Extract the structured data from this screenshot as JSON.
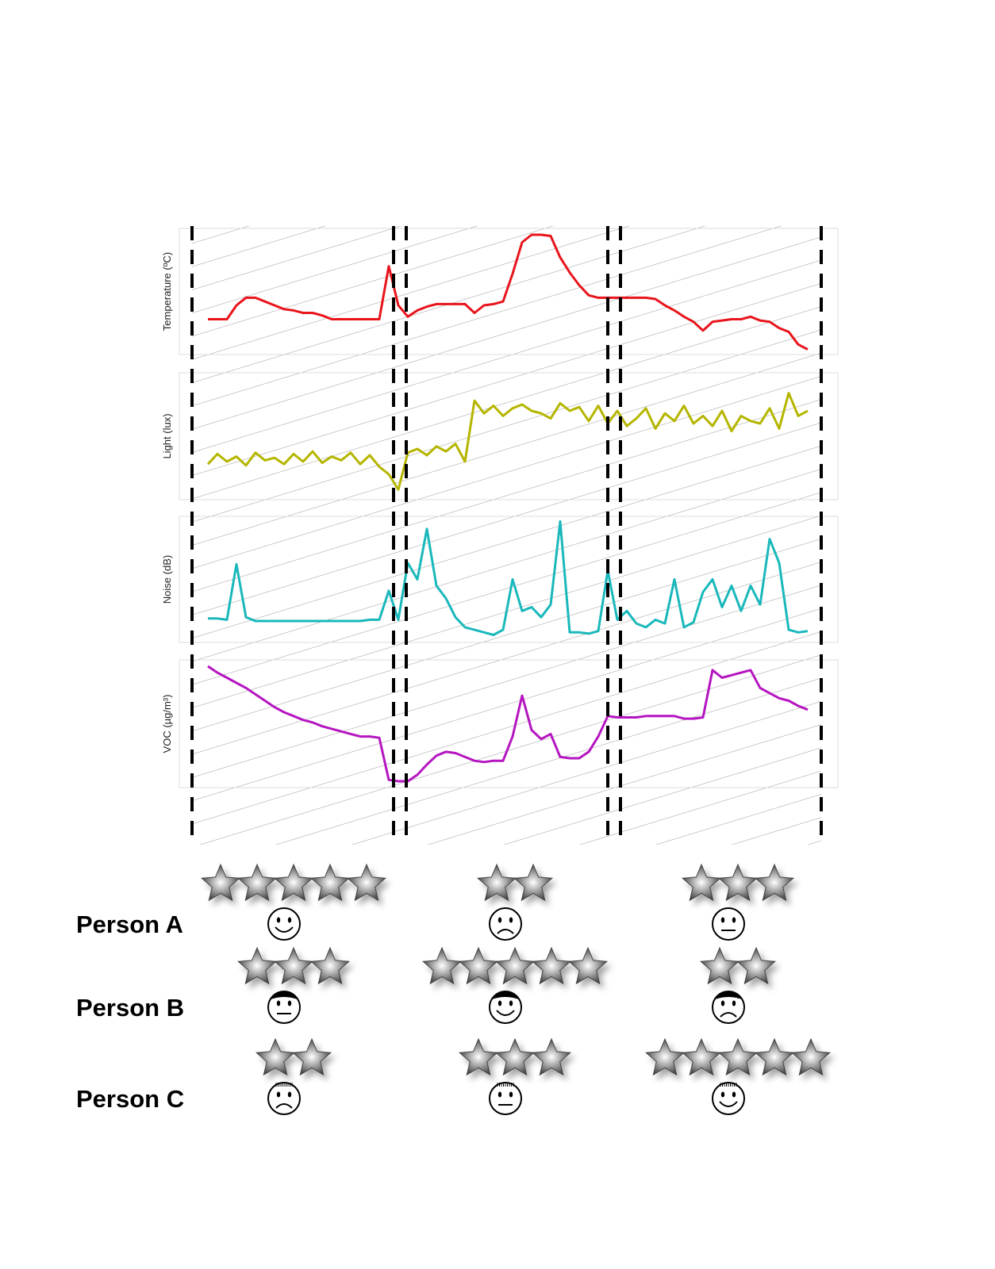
{
  "chart_data": [
    {
      "type": "line",
      "y_label": "Temperature (ºC)",
      "color": "#e8141b",
      "ylim": [
        0,
        100
      ],
      "values": [
        28,
        28,
        28,
        39,
        45,
        45,
        42,
        39,
        36,
        35,
        33,
        33,
        31,
        28,
        28,
        28,
        28,
        28,
        28,
        70,
        39,
        30,
        35,
        38,
        40,
        40,
        40,
        40,
        33,
        39,
        40,
        42,
        64,
        89,
        95,
        95,
        94,
        77,
        65,
        55,
        47,
        45,
        45,
        45,
        45,
        45,
        45,
        44,
        39,
        35,
        30,
        26,
        19,
        26,
        27,
        28,
        28,
        30,
        27,
        26,
        21,
        18,
        8,
        4
      ]
    },
    {
      "type": "line",
      "y_label": "Light (lux)",
      "color": "#b5b500",
      "ylim": [
        0,
        100
      ],
      "values": [
        28,
        36,
        30,
        34,
        27,
        37,
        31,
        33,
        28,
        36,
        30,
        38,
        29,
        34,
        31,
        37,
        28,
        35,
        26,
        20,
        8,
        37,
        40,
        35,
        42,
        38,
        44,
        30,
        78,
        68,
        74,
        66,
        72,
        75,
        70,
        68,
        64,
        76,
        70,
        73,
        62,
        74,
        60,
        70,
        58,
        64,
        72,
        56,
        68,
        62,
        74,
        60,
        66,
        58,
        70,
        54,
        66,
        62,
        60,
        72,
        56,
        84,
        66,
        70
      ]
    },
    {
      "type": "line",
      "y_label": "Noise (dB)",
      "color": "#1ab8bb",
      "ylim": [
        0,
        100
      ],
      "values": [
        19,
        19,
        18,
        62,
        20,
        17,
        17,
        17,
        17,
        17,
        17,
        17,
        17,
        17,
        17,
        17,
        17,
        18,
        18,
        41,
        18,
        63,
        50,
        90,
        45,
        35,
        20,
        12,
        10,
        8,
        6,
        10,
        50,
        25,
        28,
        20,
        30,
        96,
        8,
        8,
        7,
        9,
        57,
        18,
        25,
        15,
        12,
        18,
        15,
        50,
        12,
        16,
        40,
        50,
        28,
        45,
        25,
        45,
        30,
        82,
        63,
        10,
        8,
        9
      ]
    },
    {
      "type": "line",
      "y_label": "VOC (µg/m³)",
      "color": "#b515c0",
      "ylim": [
        0,
        100
      ],
      "values": [
        95,
        90,
        86,
        82,
        78,
        73,
        68,
        63,
        59,
        56,
        53,
        51,
        48,
        46,
        44,
        42,
        40,
        40,
        39,
        6,
        5,
        5,
        10,
        18,
        25,
        28,
        27,
        24,
        21,
        20,
        21,
        21,
        40,
        72,
        45,
        38,
        42,
        24,
        23,
        23,
        28,
        40,
        56,
        55,
        55,
        55,
        56,
        56,
        56,
        56,
        54,
        54,
        55,
        92,
        86,
        88,
        90,
        92,
        78,
        74,
        70,
        68,
        64,
        61
      ]
    }
  ],
  "ratings": {
    "people": [
      {
        "name": "Person A",
        "hair": "none",
        "ratings": [
          {
            "stars": 5,
            "mood": "happy"
          },
          {
            "stars": 2,
            "mood": "sad"
          },
          {
            "stars": 3,
            "mood": "neutral"
          }
        ]
      },
      {
        "name": "Person B",
        "hair": "cap",
        "ratings": [
          {
            "stars": 3,
            "mood": "neutral"
          },
          {
            "stars": 5,
            "mood": "happy"
          },
          {
            "stars": 2,
            "mood": "sad"
          }
        ]
      },
      {
        "name": "Person C",
        "hair": "fringe",
        "ratings": [
          {
            "stars": 2,
            "mood": "sad"
          },
          {
            "stars": 3,
            "mood": "neutral"
          },
          {
            "stars": 5,
            "mood": "happy"
          }
        ]
      }
    ]
  }
}
